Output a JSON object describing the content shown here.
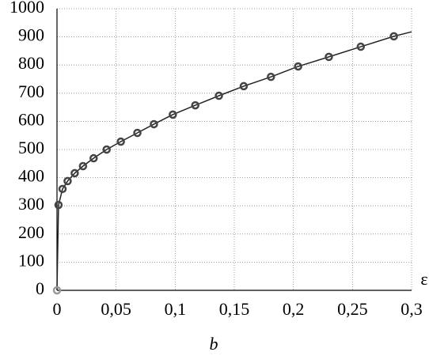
{
  "chart_data": {
    "type": "line",
    "subtitle": "b",
    "x_label": "ε",
    "xlim": [
      0,
      0.3
    ],
    "ylim": [
      0,
      1000
    ],
    "xticks": [
      0,
      {
        "value": 0.05,
        "label": "0,05"
      },
      {
        "value": 0.1,
        "label": "0,1"
      },
      {
        "value": 0.15,
        "label": "0,15"
      },
      {
        "value": 0.2,
        "label": "0,2"
      },
      {
        "value": 0.25,
        "label": "0,25"
      },
      {
        "value": 0.3,
        "label": "0,3"
      }
    ],
    "yticks": [
      0,
      100,
      200,
      300,
      400,
      500,
      600,
      700,
      800,
      900,
      1000
    ],
    "grid": true,
    "series": [
      {
        "style": "line",
        "color": "#222",
        "x": [
          0,
          0.0013,
          0.0047,
          0.009,
          0.015,
          0.022,
          0.031,
          0.042,
          0.054,
          0.068,
          0.082,
          0.098,
          0.117,
          0.137,
          0.158,
          0.181,
          0.204,
          0.23,
          0.257,
          0.285,
          0.3
        ],
        "values": [
          0,
          303,
          360,
          388,
          416,
          441,
          469,
          500,
          528,
          559,
          590,
          624,
          657,
          691,
          725,
          758,
          795,
          829,
          865,
          902,
          918
        ]
      },
      {
        "style": "markers",
        "color": "#444",
        "x": [
          0.0013,
          0.0047,
          0.009,
          0.015,
          0.022,
          0.031,
          0.042,
          0.054,
          0.068,
          0.082,
          0.098,
          0.117,
          0.137,
          0.158,
          0.181,
          0.204,
          0.23,
          0.257,
          0.285
        ],
        "values": [
          303,
          360,
          388,
          416,
          441,
          469,
          500,
          528,
          559,
          590,
          624,
          657,
          691,
          725,
          758,
          795,
          829,
          865,
          902
        ]
      },
      {
        "style": "markers",
        "color": "#999",
        "x": [
          0
        ],
        "values": [
          0
        ]
      }
    ]
  }
}
